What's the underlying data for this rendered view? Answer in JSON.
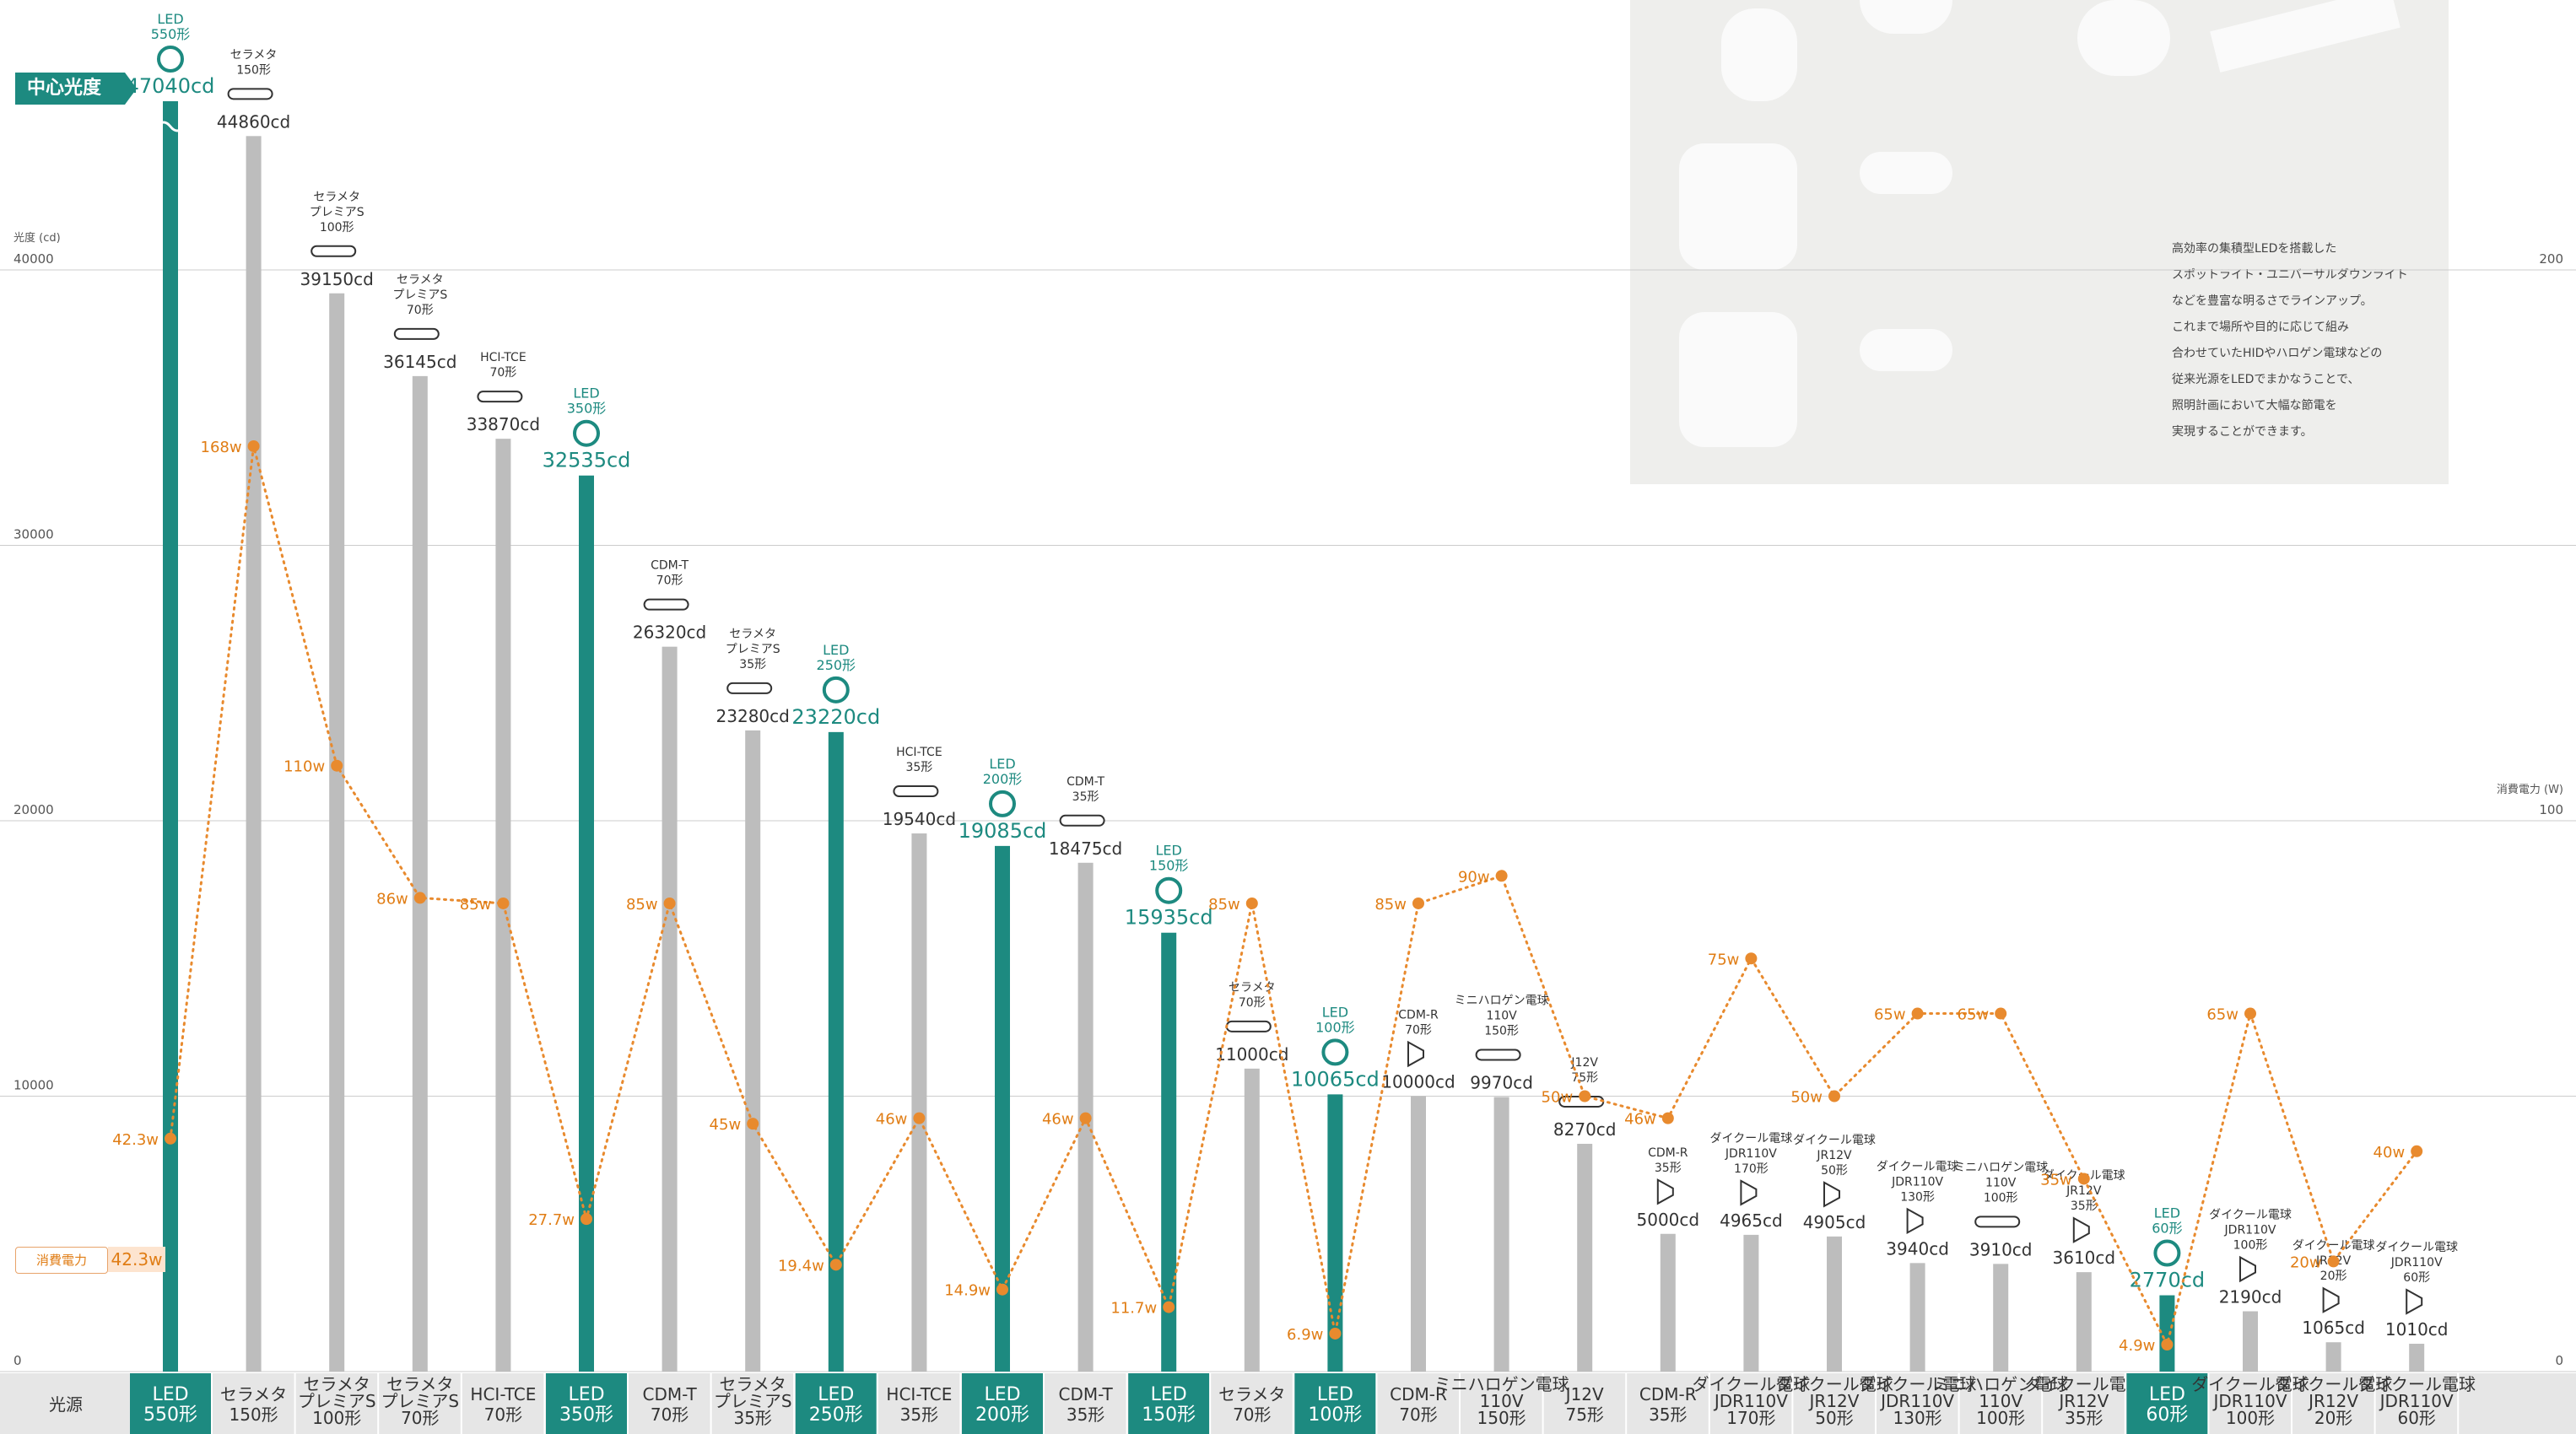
{
  "badge": {
    "label": "中心光度"
  },
  "legend": {
    "power_label": "消費電力",
    "power_value": "42.3w"
  },
  "panel": {
    "text": "高効率の集積型LEDを搭載した\nスポットライト・ユニバーサルダウンライト\nなどを豊富な明るさでラインアップ。\nこれまで場所や目的に応じて組み\n合わせていたHIDやハロゲン電球などの\n従来光源をLEDでまかなうことで、\n照明計画において大幅な節電を\n実現することができます。"
  },
  "colors": {
    "led": "#1d8a80",
    "other": "#bdbdbd",
    "power": "#e88a2e",
    "grid": "#cccccc",
    "footer_bg": "#e6e6e6"
  },
  "chart_data": {
    "type": "bar",
    "ylabel": "光度 (cd)",
    "y2label": "消費電力 (W)",
    "ylim": [
      0,
      40000
    ],
    "y2lim": [
      0,
      200
    ],
    "yticks": [
      "0",
      "10000",
      "20000",
      "30000",
      "40000"
    ],
    "y2ticks": [
      "0",
      "100",
      "200"
    ],
    "xlabel": "光源",
    "grid": true,
    "bars": [
      {
        "led": true,
        "value": 47040,
        "label": [
          "LED",
          "550形"
        ],
        "cd_label": "47040cd",
        "watt": 42.3,
        "watt_label": "42.3w",
        "source": [
          "LED",
          "550形"
        ],
        "icon": "led-lamp-icon",
        "broken": true
      },
      {
        "led": false,
        "value": 44860,
        "label": [
          "セラメタ",
          "150形"
        ],
        "cd_label": "44860cd",
        "watt": 168,
        "watt_label": "168w",
        "source": [
          "セラメタ",
          "150形"
        ],
        "icon": "metal-halide-lamp-icon"
      },
      {
        "led": false,
        "value": 39150,
        "label": [
          "セラメタ",
          "プレミアS",
          "100形"
        ],
        "cd_label": "39150cd",
        "watt": 110,
        "watt_label": "110w",
        "source": [
          "セラメタ",
          "プレミアS",
          "100形"
        ],
        "icon": "metal-halide-lamp-icon"
      },
      {
        "led": false,
        "value": 36145,
        "label": [
          "セラメタ",
          "プレミアS",
          "70形"
        ],
        "cd_label": "36145cd",
        "watt": 86,
        "watt_label": "86w",
        "source": [
          "セラメタ",
          "プレミアS",
          "70形"
        ],
        "icon": "metal-halide-lamp-icon"
      },
      {
        "led": false,
        "value": 33870,
        "label": [
          "HCI-TCE",
          "70形"
        ],
        "cd_label": "33870cd",
        "watt": 85,
        "watt_label": "85w",
        "source": [
          "HCI-TCE",
          "70形"
        ],
        "icon": "metal-halide-lamp-icon"
      },
      {
        "led": true,
        "value": 32535,
        "label": [
          "LED",
          "350形"
        ],
        "cd_label": "32535cd",
        "watt": 27.7,
        "watt_label": "27.7w",
        "source": [
          "LED",
          "350形"
        ],
        "icon": "led-lamp-icon"
      },
      {
        "led": false,
        "value": 26320,
        "label": [
          "CDM-T",
          "70形"
        ],
        "cd_label": "26320cd",
        "watt": 85,
        "watt_label": "85w",
        "source": [
          "CDM-T",
          "70形"
        ],
        "icon": "cdm-lamp-icon"
      },
      {
        "led": false,
        "value": 23280,
        "label": [
          "セラメタ",
          "プレミアS",
          "35形"
        ],
        "cd_label": "23280cd",
        "watt": 45,
        "watt_label": "45w",
        "source": [
          "セラメタ",
          "プレミアS",
          "35形"
        ],
        "icon": "metal-halide-lamp-icon"
      },
      {
        "led": true,
        "value": 23220,
        "label": [
          "LED",
          "250形"
        ],
        "cd_label": "23220cd",
        "watt": 19.4,
        "watt_label": "19.4w",
        "source": [
          "LED",
          "250形"
        ],
        "icon": "led-lamp-icon"
      },
      {
        "led": false,
        "value": 19540,
        "label": [
          "HCI-TCE",
          "35形"
        ],
        "cd_label": "19540cd",
        "watt": 46,
        "watt_label": "46w",
        "source": [
          "HCI-TCE",
          "35形"
        ],
        "icon": "metal-halide-lamp-icon"
      },
      {
        "led": true,
        "value": 19085,
        "label": [
          "LED",
          "200形"
        ],
        "cd_label": "19085cd",
        "watt": 14.9,
        "watt_label": "14.9w",
        "source": [
          "LED",
          "200形"
        ],
        "icon": "led-lamp-icon"
      },
      {
        "led": false,
        "value": 18475,
        "label": [
          "CDM-T",
          "35形"
        ],
        "cd_label": "18475cd",
        "watt": 46,
        "watt_label": "46w",
        "source": [
          "CDM-T",
          "35形"
        ],
        "icon": "cdm-lamp-icon"
      },
      {
        "led": true,
        "value": 15935,
        "label": [
          "LED",
          "150形"
        ],
        "cd_label": "15935cd",
        "watt": 11.7,
        "watt_label": "11.7w",
        "source": [
          "LED",
          "150形"
        ],
        "icon": "led-lamp-icon"
      },
      {
        "led": false,
        "value": 11000,
        "label": [
          "セラメタ",
          "70形"
        ],
        "cd_label": "11000cd",
        "watt": 85,
        "watt_label": "85w",
        "source": [
          "セラメタ",
          "70形"
        ],
        "icon": "metal-halide-lamp-icon"
      },
      {
        "led": true,
        "value": 10065,
        "label": [
          "LED",
          "100形"
        ],
        "cd_label": "10065cd",
        "watt": 6.9,
        "watt_label": "6.9w",
        "source": [
          "LED",
          "100形"
        ],
        "icon": "led-lamp-icon"
      },
      {
        "led": false,
        "value": 10000,
        "label": [
          "CDM-R",
          "70形"
        ],
        "cd_label": "10000cd",
        "watt": 85,
        "watt_label": "85w",
        "source": [
          "CDM-R",
          "70形"
        ],
        "icon": "reflector-lamp-icon"
      },
      {
        "led": false,
        "value": 9970,
        "label": [
          "ミニハロゲン電球",
          "110V",
          "150形"
        ],
        "cd_label": "9970cd",
        "watt": 90,
        "watt_label": "90w",
        "source": [
          "ミニハロゲン電球",
          "110V",
          "150形"
        ],
        "icon": "halogen-lamp-icon"
      },
      {
        "led": false,
        "value": 8270,
        "label": [
          "J12V",
          "75形"
        ],
        "cd_label": "8270cd",
        "watt": 50,
        "watt_label": "50w",
        "source": [
          "J12V",
          "75形"
        ],
        "icon": "halogen-lamp-icon"
      },
      {
        "led": false,
        "value": 5000,
        "label": [
          "CDM-R",
          "35形"
        ],
        "cd_label": "5000cd",
        "watt": 46,
        "watt_label": "46w",
        "source": [
          "CDM-R",
          "35形"
        ],
        "icon": "reflector-lamp-icon"
      },
      {
        "led": false,
        "value": 4965,
        "label": [
          "ダイクール電球",
          "JDR110V",
          "170形"
        ],
        "cd_label": "4965cd",
        "watt": 75,
        "watt_label": "75w",
        "source": [
          "ダイクール電球",
          "JDR110V",
          "170形"
        ],
        "icon": "reflector-lamp-icon"
      },
      {
        "led": false,
        "value": 4905,
        "label": [
          "ダイクール電球",
          "JR12V",
          "50形"
        ],
        "cd_label": "4905cd",
        "watt": 50,
        "watt_label": "50w",
        "source": [
          "ダイクール電球",
          "JR12V",
          "50形"
        ],
        "icon": "reflector-lamp-icon"
      },
      {
        "led": false,
        "value": 3940,
        "label": [
          "ダイクール電球",
          "JDR110V",
          "130形"
        ],
        "cd_label": "3940cd",
        "watt": 65,
        "watt_label": "65w",
        "source": [
          "ダイクール電球",
          "JDR110V",
          "130形"
        ],
        "icon": "reflector-lamp-icon"
      },
      {
        "led": false,
        "value": 3910,
        "label": [
          "ミニハロゲン電球",
          "110V",
          "100形"
        ],
        "cd_label": "3910cd",
        "watt": 65,
        "watt_label": "65w",
        "source": [
          "ミニハロゲン電球",
          "110V",
          "100形"
        ],
        "icon": "halogen-lamp-icon"
      },
      {
        "led": false,
        "value": 3610,
        "label": [
          "ダイクール電球",
          "JR12V",
          "35形"
        ],
        "cd_label": "3610cd",
        "watt": 35,
        "watt_label": "35w",
        "source": [
          "ダイクール電球",
          "JR12V",
          "35形"
        ],
        "icon": "reflector-lamp-icon"
      },
      {
        "led": true,
        "value": 2770,
        "label": [
          "LED",
          "60形"
        ],
        "cd_label": "2770cd",
        "watt": 4.9,
        "watt_label": "4.9w",
        "source": [
          "LED",
          "60形"
        ],
        "icon": "led-lamp-icon"
      },
      {
        "led": false,
        "value": 2190,
        "label": [
          "ダイクール電球",
          "JDR110V",
          "100形"
        ],
        "cd_label": "2190cd",
        "watt": 65,
        "watt_label": "65w",
        "source": [
          "ダイクール電球",
          "JDR110V",
          "100形"
        ],
        "icon": "reflector-lamp-icon"
      },
      {
        "led": false,
        "value": 1065,
        "label": [
          "ダイクール電球",
          "JR12V",
          "20形"
        ],
        "cd_label": "1065cd",
        "watt": 20,
        "watt_label": "20w",
        "source": [
          "ダイクール電球",
          "JR12V",
          "20形"
        ],
        "icon": "reflector-lamp-icon"
      },
      {
        "led": false,
        "value": 1010,
        "label": [
          "ダイクール電球",
          "JDR110V",
          "60形"
        ],
        "cd_label": "1010cd",
        "watt": 40,
        "watt_label": "40w",
        "source": [
          "ダイクール電球",
          "JDR110V",
          "60形"
        ],
        "icon": "reflector-lamp-icon"
      }
    ]
  }
}
